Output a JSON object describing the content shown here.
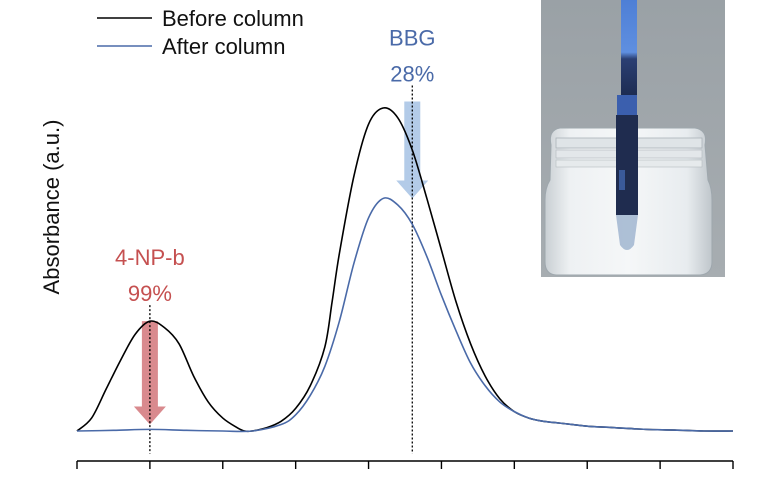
{
  "chart_data": {
    "type": "line",
    "title": "",
    "xlabel": "",
    "ylabel": "Absorbance (a.u.)",
    "xlim": [
      0,
      9
    ],
    "ylim": [
      0,
      1.0
    ],
    "x_tick_count": 10,
    "x_ticks": [
      0,
      1,
      2,
      3,
      4,
      5,
      6,
      7,
      8,
      9
    ],
    "x_tick_labels": [],
    "grid": false,
    "legend_position": "top-left",
    "series": [
      {
        "name": "Before column",
        "color": "#000000",
        "x": [
          0,
          0.2,
          0.4,
          0.6,
          0.8,
          1.0,
          1.2,
          1.4,
          1.6,
          1.8,
          2.0,
          2.2,
          2.3,
          2.4,
          2.6,
          2.8,
          3.0,
          3.2,
          3.4,
          3.5,
          3.6,
          3.8,
          4.0,
          4.2,
          4.4,
          4.6,
          4.8,
          5.0,
          5.2,
          5.4,
          5.6,
          5.8,
          6.0,
          6.2,
          6.4,
          6.6,
          6.8,
          7.0,
          7.4,
          7.8,
          8.2,
          8.6,
          9.0
        ],
        "values": [
          0.0,
          0.04,
          0.13,
          0.22,
          0.3,
          0.34,
          0.32,
          0.27,
          0.17,
          0.09,
          0.04,
          0.01,
          0.0,
          0.0,
          0.01,
          0.03,
          0.07,
          0.14,
          0.26,
          0.4,
          0.55,
          0.79,
          0.95,
          1.0,
          0.97,
          0.87,
          0.72,
          0.56,
          0.4,
          0.27,
          0.17,
          0.1,
          0.06,
          0.04,
          0.03,
          0.025,
          0.02,
          0.015,
          0.01,
          0.005,
          0.003,
          0.0,
          0.0
        ]
      },
      {
        "name": "After column",
        "color": "#4a6aa8",
        "x": [
          0,
          0.5,
          1.0,
          1.5,
          2.0,
          2.4,
          2.8,
          3.0,
          3.2,
          3.4,
          3.6,
          3.8,
          4.0,
          4.2,
          4.4,
          4.6,
          4.8,
          5.0,
          5.2,
          5.4,
          5.6,
          5.8,
          6.0,
          6.2,
          6.4,
          6.6,
          6.8,
          7.0,
          7.4,
          7.8,
          8.2,
          8.6,
          9.0
        ],
        "values": [
          0.0,
          0.002,
          0.005,
          0.002,
          0.0,
          0.0,
          0.02,
          0.05,
          0.11,
          0.2,
          0.34,
          0.52,
          0.66,
          0.72,
          0.7,
          0.64,
          0.54,
          0.42,
          0.31,
          0.21,
          0.14,
          0.09,
          0.06,
          0.04,
          0.03,
          0.025,
          0.02,
          0.015,
          0.01,
          0.005,
          0.003,
          0.0,
          0.0
        ]
      }
    ],
    "markers": [
      {
        "label": "4-NP-b",
        "percent": "99%",
        "x": 1.0,
        "color": "#c55050",
        "arrow_color": "#d98a8e",
        "arrow_top": 0.34,
        "arrow_bottom": 0.02
      },
      {
        "label": "BBG",
        "percent": "28%",
        "x": 4.6,
        "color": "#4a6aa8",
        "arrow_color": "#b3cbe8",
        "arrow_top": 1.02,
        "arrow_bottom": 0.72
      }
    ]
  },
  "inset_photo": {
    "description_icon": "photo-of-vial-with-column"
  }
}
